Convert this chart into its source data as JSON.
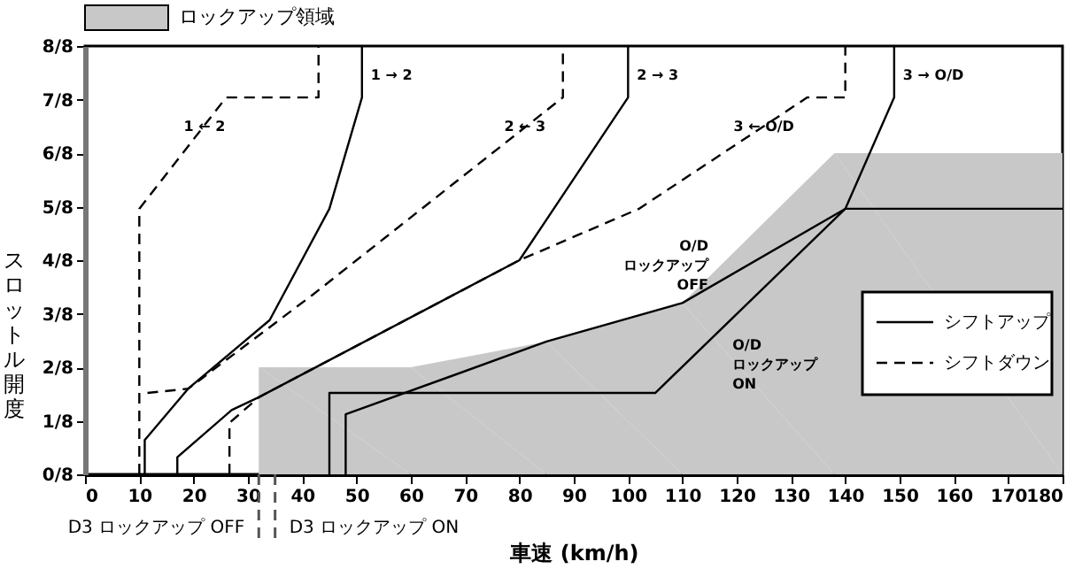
{
  "chart_data": {
    "type": "line",
    "xlabel": "車速 (km/h)",
    "ylabel": "スロットル開度",
    "xlim": [
      0,
      180
    ],
    "xticks": [
      0,
      10,
      20,
      30,
      40,
      50,
      60,
      70,
      80,
      90,
      100,
      110,
      120,
      130,
      140,
      150,
      160,
      170,
      180
    ],
    "ylim": [
      0,
      1
    ],
    "yticks": [
      {
        "value": 0,
        "label": "0/8"
      },
      {
        "value": 0.125,
        "label": "1/8"
      },
      {
        "value": 0.25,
        "label": "2/8"
      },
      {
        "value": 0.375,
        "label": "3/8"
      },
      {
        "value": 0.5,
        "label": "4/8"
      },
      {
        "value": 0.625,
        "label": "5/8"
      },
      {
        "value": 0.75,
        "label": "6/8"
      },
      {
        "value": 0.875,
        "label": "7/8"
      },
      {
        "value": 1,
        "label": "8/8"
      }
    ],
    "legend": "right",
    "series": [
      {
        "type": "area",
        "name": "ロックアップ領域",
        "color": "#c8c8c8",
        "x": [
          32,
          32,
          60,
          85,
          110,
          138,
          180
        ],
        "values": [
          0,
          0.25,
          0.25,
          0.31,
          0.4,
          0.75,
          0.75
        ]
      },
      {
        "name": "シフトアップ",
        "color": "#000000",
        "line_style": "solid",
        "x": [
          11,
          11,
          19,
          34,
          45,
          51,
          51
        ],
        "values": [
          0,
          0.08,
          0.2,
          0.36,
          0.62,
          0.88,
          1
        ]
      },
      {
        "name": "シフトダウン",
        "color": "#000000",
        "line_style": "dashed",
        "x": [
          10,
          10,
          26,
          43,
          43
        ],
        "values": [
          0,
          0.62,
          0.88,
          0.88,
          1
        ]
      },
      {
        "color": "#000000",
        "line_style": "solid",
        "x": [
          17,
          17,
          27,
          32,
          80,
          100,
          100
        ],
        "values": [
          0,
          0.04,
          0.15,
          0.18,
          0.5,
          0.88,
          1
        ]
      },
      {
        "color": "#000000",
        "line_style": "dashed",
        "x": [
          11.5,
          19,
          42,
          88,
          88
        ],
        "values": [
          0.19,
          0.2,
          0.42,
          0.88,
          1
        ]
      },
      {
        "color": "#000000",
        "line_style": "solid",
        "x": [
          149,
          149,
          140
        ],
        "values": [
          1,
          0.88,
          0.62
        ]
      },
      {
        "color": "#000000",
        "line_style": "dashed",
        "x": [
          26.6,
          26.6,
          32,
          80,
          102,
          133,
          140,
          140
        ],
        "values": [
          0,
          0.12,
          0.18,
          0.5,
          0.62,
          0.88,
          0.88,
          1
        ]
      },
      {
        "color": "#000000",
        "line_style": "solid",
        "x": [
          45,
          45,
          105,
          140,
          180
        ],
        "values": [
          0,
          0.19,
          0.19,
          0.62,
          0.62
        ]
      },
      {
        "color": "#000000",
        "line_style": "solid",
        "x": [
          48,
          48,
          85,
          110,
          140
        ],
        "values": [
          0,
          0.14,
          0.31,
          0.4,
          0.62
        ]
      }
    ],
    "ref_lines": [
      {
        "axis": "x",
        "value": 32,
        "label": "D3 ロックアップ OFF",
        "line_style": "dashed"
      },
      {
        "axis": "x",
        "value": 35,
        "label": "D3 ロックアップ ON",
        "line_style": "dashed"
      }
    ],
    "annotations": [
      {
        "text": "1 → 2",
        "x": 51,
        "y": 0.93
      },
      {
        "text": "1 ← 2",
        "x": 22,
        "y": 0.81
      },
      {
        "text": "2 → 3",
        "x": 100,
        "y": 0.93
      },
      {
        "text": "2 ← 3",
        "x": 81,
        "y": 0.81
      },
      {
        "text": "3 → O/D",
        "x": 149,
        "y": 0.93
      },
      {
        "text": "3 ← O/D",
        "x": 125,
        "y": 0.81
      },
      {
        "text": "O/D\nロックアップ\nOFF",
        "x": 120,
        "y": 0.53
      },
      {
        "text": "O/D\nロックアップ\nON",
        "x": 114,
        "y": 0.3
      }
    ]
  }
}
